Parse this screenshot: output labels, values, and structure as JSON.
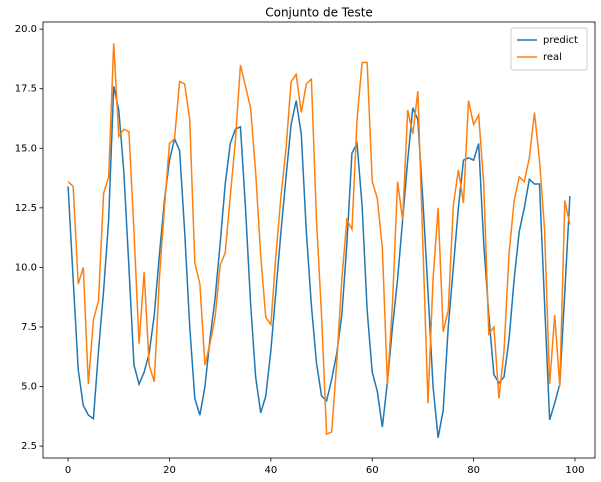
{
  "chart_data": {
    "type": "line",
    "title": "Conjunto de Teste",
    "x": [
      0,
      1,
      2,
      3,
      4,
      5,
      6,
      7,
      8,
      9,
      10,
      11,
      12,
      13,
      14,
      15,
      16,
      17,
      18,
      19,
      20,
      21,
      22,
      23,
      24,
      25,
      26,
      27,
      28,
      29,
      30,
      31,
      32,
      33,
      34,
      35,
      36,
      37,
      38,
      39,
      40,
      41,
      42,
      43,
      44,
      45,
      46,
      47,
      48,
      49,
      50,
      51,
      52,
      53,
      54,
      55,
      56,
      57,
      58,
      59,
      60,
      61,
      62,
      63,
      64,
      65,
      66,
      67,
      68,
      69,
      70,
      71,
      72,
      73,
      74,
      75,
      76,
      77,
      78,
      79,
      80,
      81,
      82,
      83,
      84,
      85,
      86,
      87,
      88,
      89,
      90,
      91,
      92,
      93,
      94,
      95,
      96,
      97,
      98,
      99
    ],
    "series": [
      {
        "name": "predict",
        "color": "#1f77b4",
        "values": [
          13.4,
          9.5,
          5.7,
          4.2,
          3.8,
          3.65,
          6.5,
          9.0,
          12.0,
          17.6,
          16.6,
          14.0,
          10.0,
          5.9,
          5.1,
          5.6,
          6.4,
          8.0,
          10.5,
          12.8,
          14.5,
          15.4,
          14.9,
          11.5,
          7.5,
          4.5,
          3.8,
          5.0,
          7.0,
          8.7,
          11.0,
          13.5,
          15.2,
          15.8,
          15.9,
          12.5,
          8.5,
          5.4,
          3.9,
          4.6,
          6.5,
          9.0,
          11.5,
          13.8,
          16.0,
          17.0,
          15.6,
          11.5,
          8.4,
          6.0,
          4.6,
          4.4,
          5.3,
          6.4,
          8.0,
          11.0,
          14.8,
          15.2,
          12.6,
          8.2,
          5.6,
          4.8,
          3.3,
          5.2,
          7.5,
          9.5,
          12.0,
          14.5,
          16.7,
          16.2,
          12.8,
          9.0,
          5.0,
          2.85,
          4.0,
          7.5,
          10.0,
          12.5,
          14.5,
          14.6,
          14.5,
          15.2,
          11.0,
          8.0,
          5.5,
          5.15,
          5.4,
          7.0,
          9.5,
          11.5,
          12.5,
          13.7,
          13.5,
          13.5,
          8.5,
          3.6,
          4.3,
          5.1,
          9.0,
          13.0
        ]
      },
      {
        "name": "real",
        "color": "#ff7f0e",
        "values": [
          13.6,
          13.4,
          9.3,
          10.0,
          5.1,
          7.8,
          8.6,
          13.1,
          13.8,
          19.4,
          15.5,
          15.8,
          15.7,
          11.5,
          6.8,
          9.8,
          5.9,
          5.2,
          9.5,
          12.5,
          15.2,
          15.4,
          17.8,
          17.7,
          16.2,
          10.2,
          9.3,
          5.9,
          6.8,
          7.9,
          10.1,
          10.6,
          13.0,
          15.3,
          18.5,
          17.6,
          16.7,
          14.0,
          10.5,
          7.9,
          7.6,
          10.5,
          13.0,
          15.0,
          17.8,
          18.1,
          16.5,
          17.7,
          17.9,
          12.0,
          8.0,
          3.0,
          3.1,
          6.0,
          9.5,
          12.0,
          11.6,
          16.2,
          18.6,
          18.6,
          13.6,
          12.9,
          10.8,
          5.1,
          8.5,
          13.6,
          12.0,
          16.6,
          15.6,
          17.4,
          10.9,
          4.3,
          9.5,
          12.5,
          7.3,
          8.2,
          12.6,
          14.1,
          12.7,
          17.0,
          16.0,
          16.4,
          13.5,
          7.2,
          7.5,
          4.5,
          6.5,
          10.6,
          12.8,
          13.8,
          13.6,
          14.6,
          16.5,
          14.5,
          11.6,
          5.1,
          8.0,
          5.0,
          12.8,
          11.8
        ]
      }
    ],
    "xlim": [
      -4.95,
      103.95
    ],
    "xticks": [
      0,
      20,
      40,
      60,
      80,
      100
    ],
    "ylim": [
      2.0,
      20.3
    ],
    "yticks": [
      2.5,
      {
        "value": 5,
        "label": "5.0"
      },
      7.5,
      {
        "value": 10,
        "label": "10.0"
      },
      12.5,
      {
        "value": 15,
        "label": "15.0"
      },
      17.5,
      {
        "value": 20,
        "label": "20.0"
      }
    ],
    "legend": "upper right",
    "grid": false
  }
}
